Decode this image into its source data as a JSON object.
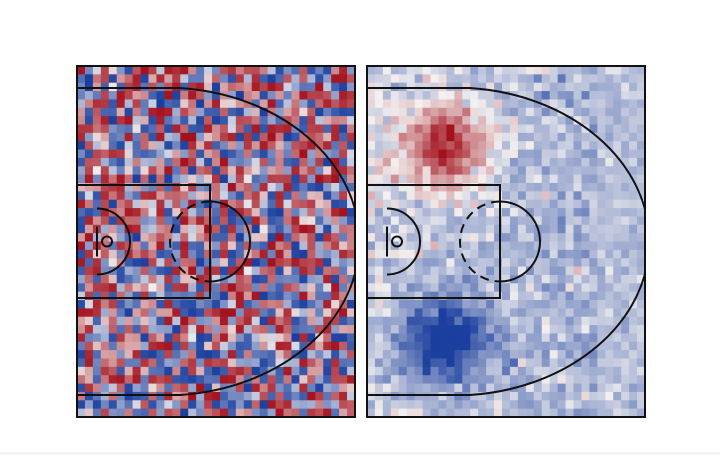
{
  "chart_data": [
    {
      "type": "heatmap",
      "panel": "left",
      "pattern": "noise",
      "grid": {
        "cols": 35,
        "rows": 42
      },
      "court_overlay": true,
      "seed": 12345,
      "colormap": {
        "neg": "#1b3f9e",
        "zero": "#f3f1f0",
        "pos": "#a3111d"
      },
      "value_range": [
        -1,
        1
      ]
    },
    {
      "type": "heatmap",
      "panel": "right",
      "pattern": "structured",
      "grid": {
        "cols": 35,
        "rows": 42
      },
      "court_overlay": true,
      "seed": 67890,
      "colormap": {
        "neg": "#1b3f9e",
        "zero": "#f3f1f0",
        "pos": "#a3111d"
      },
      "value_range": [
        -1,
        1
      ],
      "hotspots": [
        {
          "sign": "positive",
          "region": "upper",
          "peak": 1.0
        },
        {
          "sign": "negative",
          "region": "lower",
          "peak": -1.0
        }
      ],
      "background_tint": "negative",
      "background_level": -0.22
    }
  ]
}
